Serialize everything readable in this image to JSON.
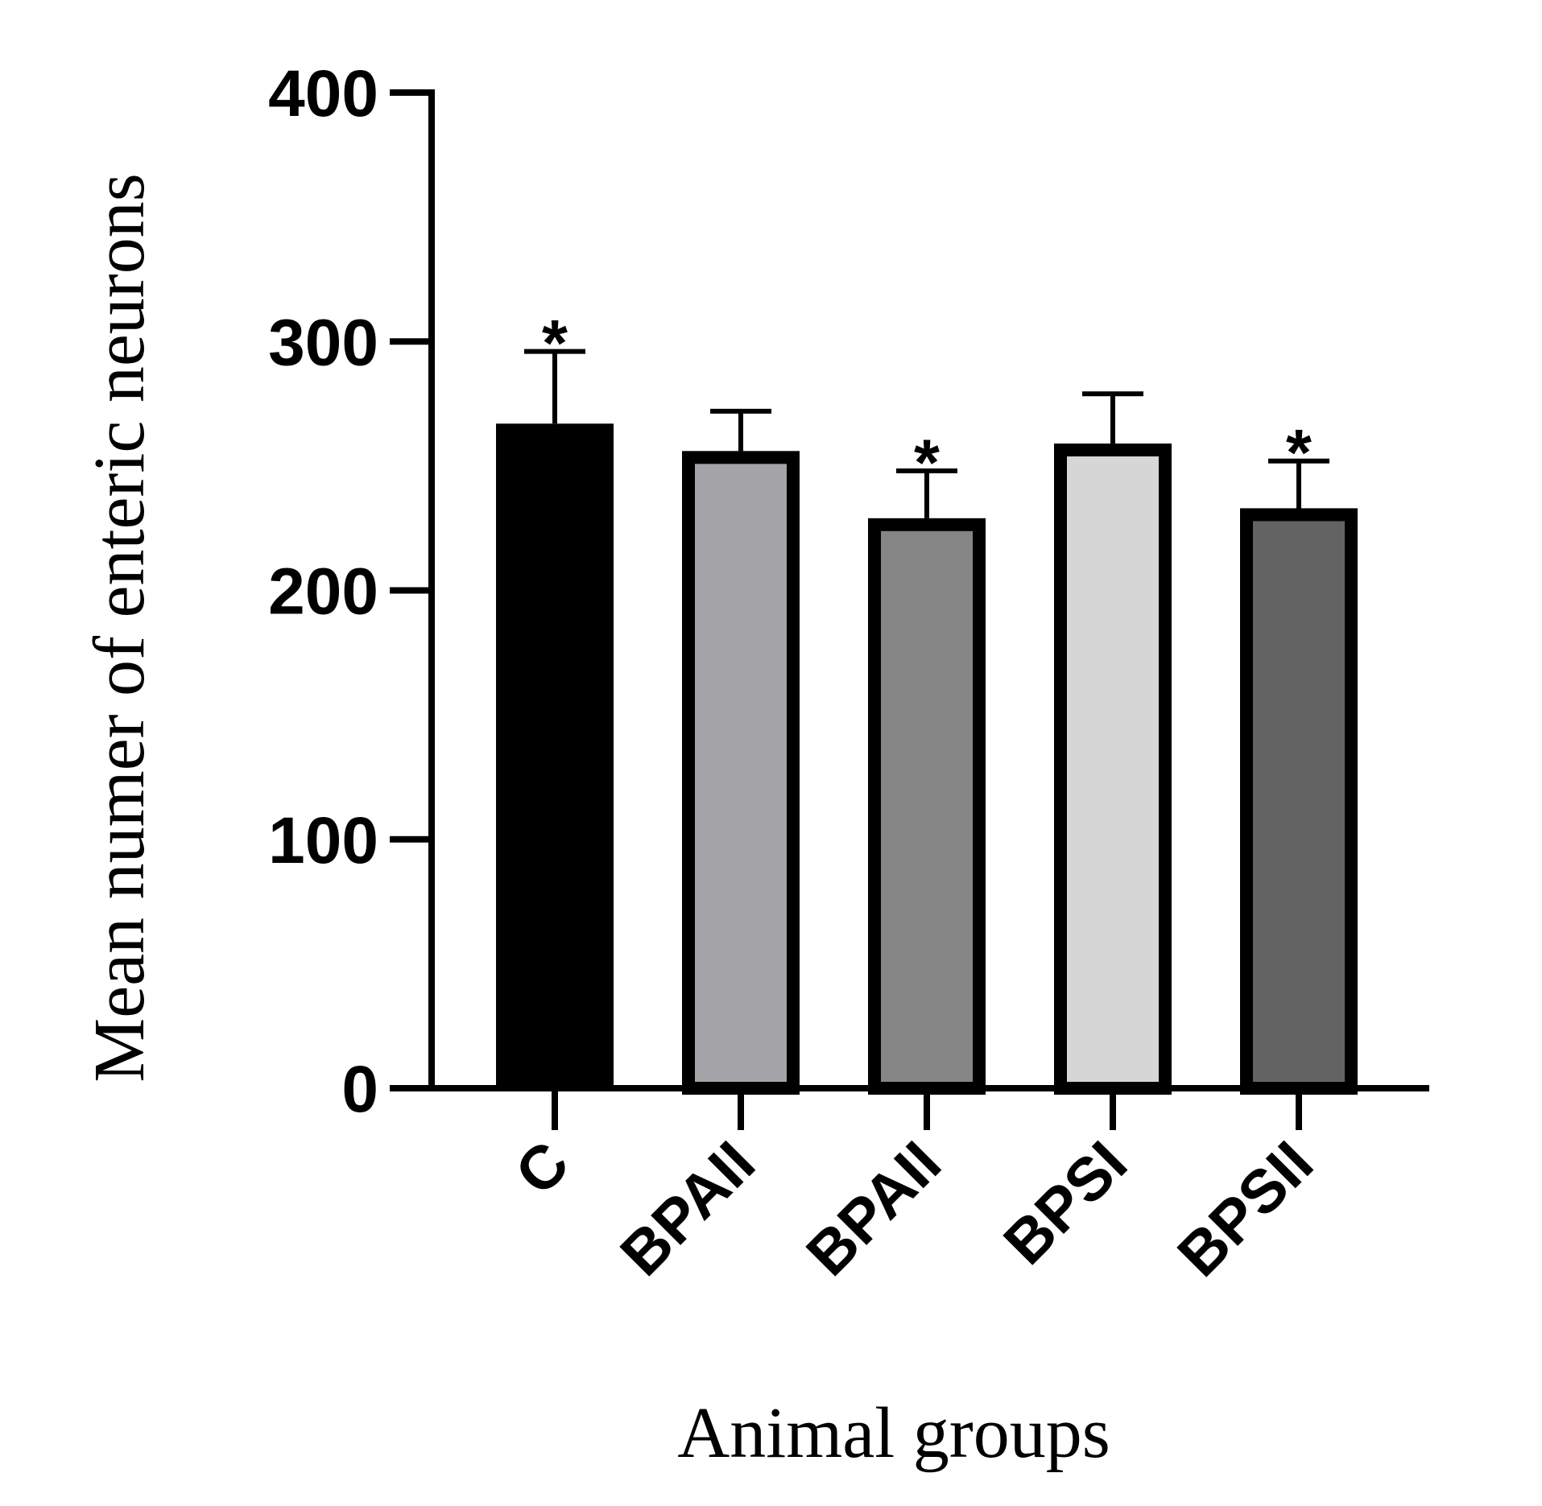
{
  "chart_data": {
    "type": "bar",
    "title": "",
    "xlabel": "Animal groups",
    "ylabel": "Mean numer of enteric neurons",
    "ylim": [
      0,
      400
    ],
    "yticks": [
      0,
      100,
      200,
      300,
      400
    ],
    "ytick_labels": [
      "0",
      "100",
      "200",
      "300",
      "400"
    ],
    "categories": [
      "C",
      "BPAII",
      "BPAII",
      "BPSI",
      "BPSII"
    ],
    "values": [
      267,
      256,
      229,
      259,
      233
    ],
    "errors": [
      29,
      16,
      19,
      20,
      19
    ],
    "significance": [
      "*",
      "",
      "*",
      "",
      "*"
    ],
    "colors": [
      "#000000",
      "#a3a3a8",
      "#858585",
      "#d6d6d6",
      "#636363"
    ],
    "grid": false,
    "legend": "none"
  }
}
